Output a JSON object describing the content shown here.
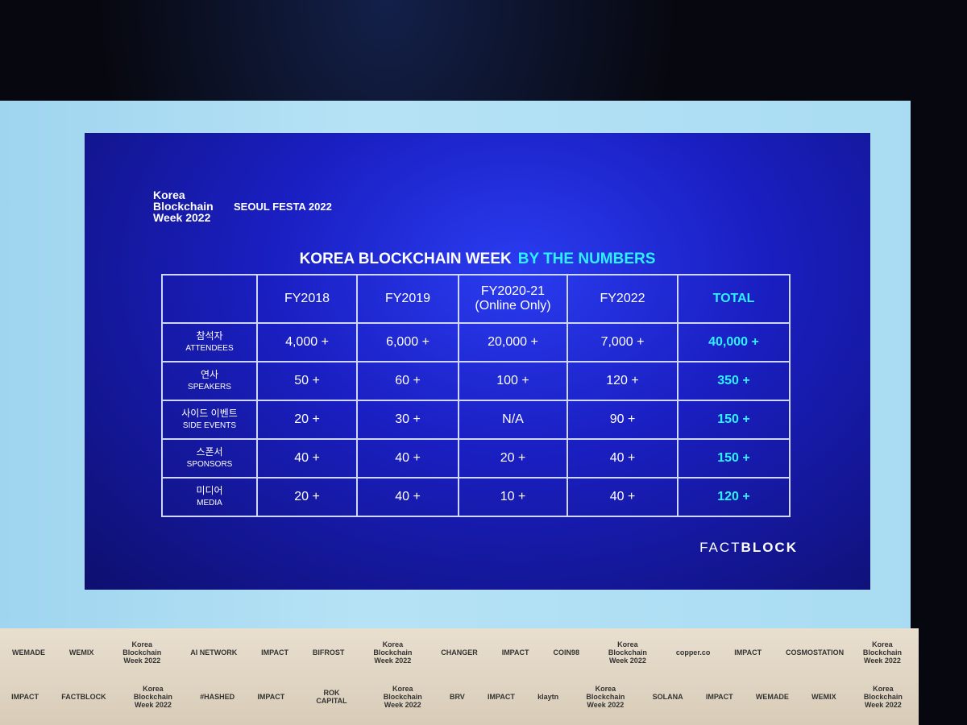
{
  "slide": {
    "logo": "Korea\nBlockchain\nWeek 2022",
    "festa": "SEOUL FESTA 2022",
    "title": "KOREA BLOCKCHAIN WEEK",
    "title_highlight": "BY THE NUMBERS",
    "brand_light": "FACT",
    "brand_bold": "BLOCK"
  },
  "table": {
    "columns": [
      "FY2018",
      "FY2019",
      "FY2020-21\n(Online Only)",
      "FY2022",
      "TOTAL"
    ],
    "rows": [
      {
        "ko": "참석자",
        "en": "ATTENDEES",
        "cells": [
          "4,000 +",
          "6,000 +",
          "20,000 +",
          "7,000 +",
          "40,000 +"
        ]
      },
      {
        "ko": "연사",
        "en": "SPEAKERS",
        "cells": [
          "50 +",
          "60 +",
          "100 +",
          "120 +",
          "350 +"
        ]
      },
      {
        "ko": "사이드 이벤트",
        "en": "SIDE EVENTS",
        "cells": [
          "20 +",
          "30 +",
          "N/A",
          "90 +",
          "150 +"
        ]
      },
      {
        "ko": "스폰서",
        "en": "SPONSORS",
        "cells": [
          "40 +",
          "40 +",
          "20 +",
          "40 +",
          "150 +"
        ]
      },
      {
        "ko": "미디어",
        "en": "MEDIA",
        "cells": [
          "20 +",
          "40 +",
          "10 +",
          "40 +",
          "120 +"
        ]
      }
    ]
  },
  "sponsor_wall": [
    [
      "WEMADE",
      "WEMIX",
      "Korea Blockchain Week 2022",
      "AI NETWORK",
      "IMPACT",
      "BIFROST",
      "Korea Blockchain Week 2022",
      "CHANGER",
      "IMPACT",
      "COIN98",
      "Korea Blockchain Week 2022",
      "copper.co",
      "IMPACT",
      "COSMOSTATION",
      "Korea Blockchain Week 2022"
    ],
    [
      "IMPACT",
      "FACTBLOCK",
      "Korea Blockchain Week 2022",
      "#HASHED",
      "IMPACT",
      "ROK CAPITAL",
      "Korea Blockchain Week 2022",
      "BRV",
      "IMPACT",
      "klaytn",
      "Korea Blockchain Week 2022",
      "SOLANA",
      "IMPACT",
      "WEMADE",
      "WEMIX",
      "Korea Blockchain Week 2022"
    ]
  ]
}
